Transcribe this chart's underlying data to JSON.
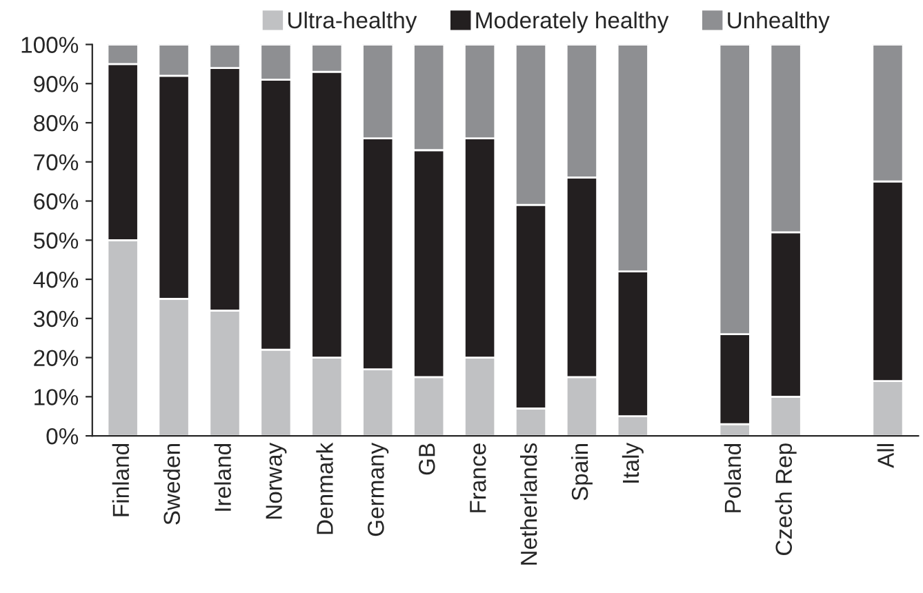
{
  "chart_data": {
    "type": "bar",
    "stacked": true,
    "legend": "top",
    "categories": [
      "Finland",
      "Sweden",
      "Ireland",
      "Norway",
      "Denmark",
      "Germany",
      "GB",
      "France",
      "Netherlands",
      "Spain",
      "Italy",
      null,
      "Poland",
      "Czech Rep",
      null,
      "All"
    ],
    "series": [
      {
        "name": "Ultra-healthy",
        "color": "#c0c1c3",
        "values": [
          50,
          35,
          32,
          22,
          20,
          17,
          15,
          20,
          7,
          15,
          5,
          null,
          3,
          10,
          null,
          14
        ]
      },
      {
        "name": "Moderately healthy",
        "color": "#231f20",
        "values": [
          45,
          57,
          62,
          69,
          73,
          59,
          58,
          56,
          52,
          51,
          37,
          null,
          23,
          42,
          null,
          51
        ]
      },
      {
        "name": "Unhealthy",
        "color": "#8e8f92",
        "values": [
          5,
          8,
          6,
          9,
          7,
          24,
          27,
          24,
          41,
          34,
          58,
          null,
          74,
          48,
          null,
          35
        ]
      }
    ],
    "ylim": [
      0,
      100
    ],
    "yticks": [
      {
        "value": 0,
        "label": "0%"
      },
      {
        "value": 10,
        "label": "10%"
      },
      {
        "value": 20,
        "label": "20%"
      },
      {
        "value": 30,
        "label": "30%"
      },
      {
        "value": 40,
        "label": "40%"
      },
      {
        "value": 50,
        "label": "50%"
      },
      {
        "value": 60,
        "label": "60%"
      },
      {
        "value": 70,
        "label": "70%"
      },
      {
        "value": 80,
        "label": "80%"
      },
      {
        "value": 90,
        "label": "90%"
      },
      {
        "value": 100,
        "label": "100%"
      }
    ]
  }
}
